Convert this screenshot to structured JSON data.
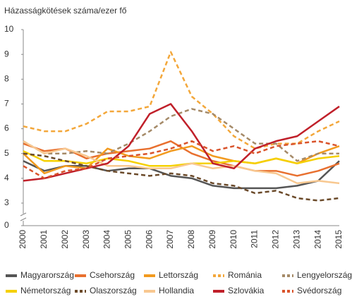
{
  "chart_data": {
    "type": "line",
    "y_axis_label": "Házasságkötések száma/ezer fő",
    "x": [
      "2000",
      "2001",
      "2002",
      "2003",
      "2004",
      "2005",
      "2006",
      "2007",
      "2008",
      "2009",
      "2010",
      "2011",
      "2012",
      "2013",
      "2014",
      "2015"
    ],
    "ylim": [
      0,
      10
    ],
    "yticks": [
      0,
      3,
      4,
      5,
      6,
      7,
      8,
      9,
      10
    ],
    "y_break": [
      0,
      3
    ],
    "series": [
      {
        "name": "Magyarország",
        "color": "#555555",
        "dashed": false,
        "values": [
          4.7,
          4.3,
          4.5,
          4.5,
          4.3,
          4.4,
          4.4,
          4.1,
          4.0,
          3.7,
          3.6,
          3.6,
          3.6,
          3.7,
          3.9,
          4.7
        ]
      },
      {
        "name": "Csehország",
        "color": "#e8702f",
        "dashed": false,
        "values": [
          5.4,
          5.1,
          5.2,
          4.8,
          5.0,
          5.1,
          5.2,
          5.5,
          5.0,
          4.7,
          4.5,
          4.3,
          4.3,
          4.1,
          4.3,
          4.6
        ]
      },
      {
        "name": "Lettország",
        "color": "#f29a1e",
        "dashed": false,
        "values": [
          5.0,
          4.2,
          4.5,
          4.4,
          5.2,
          4.9,
          4.8,
          5.1,
          5.3,
          4.9,
          4.7,
          4.6,
          4.8,
          4.6,
          5.0,
          5.3
        ]
      },
      {
        "name": "Románia",
        "color": "#f3a73a",
        "dashed": true,
        "values": [
          6.1,
          5.9,
          5.9,
          6.2,
          6.7,
          6.7,
          6.9,
          9.1,
          7.3,
          6.6,
          5.7,
          5.2,
          5.4,
          5.4,
          5.9,
          6.3
        ]
      },
      {
        "name": "Lengyelország",
        "color": "#a58a68",
        "dashed": true,
        "values": [
          5.5,
          5.0,
          5.0,
          5.1,
          5.0,
          5.4,
          5.9,
          6.5,
          6.8,
          6.6,
          6.0,
          5.4,
          5.4,
          4.7,
          5.0,
          5.0
        ]
      },
      {
        "name": "Németország",
        "color": "#f5d000",
        "dashed": false,
        "values": [
          5.1,
          4.7,
          4.7,
          4.6,
          4.8,
          4.7,
          4.5,
          4.5,
          4.6,
          4.6,
          4.7,
          4.6,
          4.8,
          4.6,
          4.8,
          4.9
        ]
      },
      {
        "name": "Olaszország",
        "color": "#6b4a2a",
        "dashed": true,
        "values": [
          5.0,
          4.9,
          4.7,
          4.5,
          4.3,
          4.2,
          4.1,
          4.2,
          4.1,
          3.8,
          3.7,
          3.4,
          3.5,
          3.2,
          3.1,
          3.2
        ]
      },
      {
        "name": "Hollandia",
        "color": "#f8c890",
        "dashed": false,
        "values": [
          5.5,
          5.0,
          5.2,
          4.9,
          4.5,
          4.5,
          4.4,
          4.4,
          4.6,
          4.4,
          4.5,
          4.3,
          4.2,
          3.8,
          3.9,
          3.8
        ]
      },
      {
        "name": "Szlovákia",
        "color": "#c0202a",
        "dashed": false,
        "values": [
          3.9,
          4.0,
          4.2,
          4.4,
          4.6,
          5.3,
          6.6,
          7.0,
          5.9,
          4.6,
          4.4,
          5.2,
          5.5,
          5.7,
          6.3,
          6.9
        ]
      },
      {
        "name": "Svédország",
        "color": "#d9532b",
        "dashed": true,
        "values": [
          4.5,
          4.0,
          4.3,
          4.4,
          4.8,
          4.9,
          5.0,
          5.2,
          5.5,
          5.1,
          5.3,
          5.0,
          5.3,
          5.4,
          5.5,
          5.3
        ]
      }
    ]
  }
}
